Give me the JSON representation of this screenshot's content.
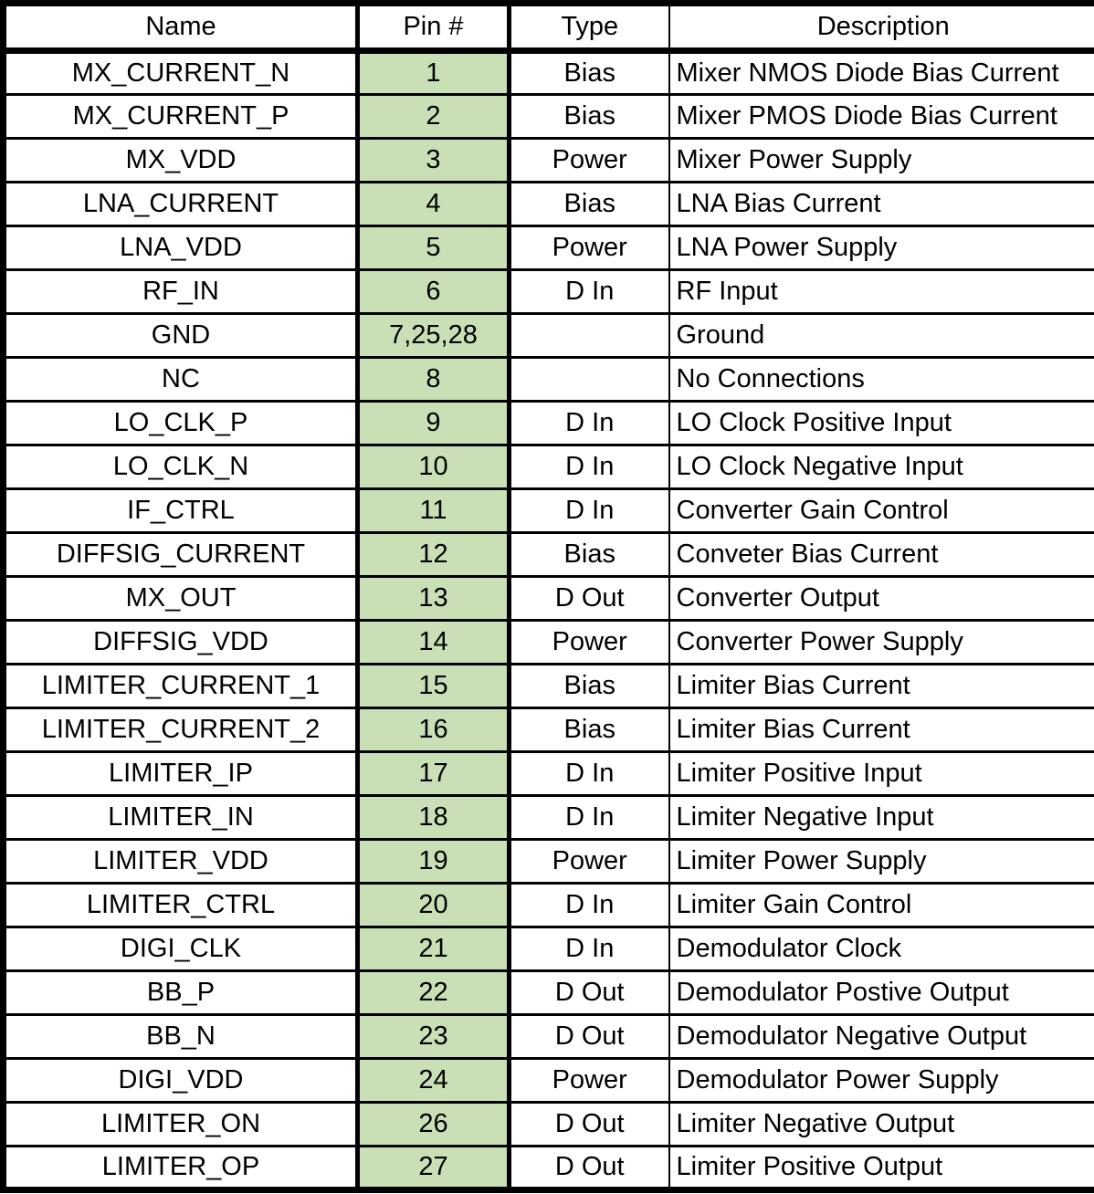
{
  "table": {
    "columns": [
      "Name",
      "Pin #",
      "Type",
      "Description"
    ],
    "colors": {
      "pin_column_bg": "#c9e0b6",
      "border": "#000000",
      "background": "#ffffff",
      "text": "#000000"
    },
    "rows": [
      {
        "name": "MX_CURRENT_N",
        "pin": "1",
        "type": "Bias",
        "description": "Mixer NMOS Diode Bias Current"
      },
      {
        "name": "MX_CURRENT_P",
        "pin": "2",
        "type": "Bias",
        "description": "Mixer PMOS Diode Bias Current"
      },
      {
        "name": "MX_VDD",
        "pin": "3",
        "type": "Power",
        "description": "Mixer Power Supply"
      },
      {
        "name": "LNA_CURRENT",
        "pin": "4",
        "type": "Bias",
        "description": "LNA Bias Current"
      },
      {
        "name": "LNA_VDD",
        "pin": "5",
        "type": "Power",
        "description": "LNA Power Supply"
      },
      {
        "name": "RF_IN",
        "pin": "6",
        "type": "D In",
        "description": "RF Input"
      },
      {
        "name": "GND",
        "pin": "7,25,28",
        "type": "",
        "description": "Ground"
      },
      {
        "name": "NC",
        "pin": "8",
        "type": "",
        "description": "No Connections"
      },
      {
        "name": "LO_CLK_P",
        "pin": "9",
        "type": "D In",
        "description": "LO Clock Positive Input"
      },
      {
        "name": "LO_CLK_N",
        "pin": "10",
        "type": "D In",
        "description": "LO Clock Negative Input"
      },
      {
        "name": "IF_CTRL",
        "pin": "11",
        "type": "D In",
        "description": "Converter Gain Control"
      },
      {
        "name": "DIFFSIG_CURRENT",
        "pin": "12",
        "type": "Bias",
        "description": "Conveter Bias Current"
      },
      {
        "name": "MX_OUT",
        "pin": "13",
        "type": "D Out",
        "description": "Converter Output"
      },
      {
        "name": "DIFFSIG_VDD",
        "pin": "14",
        "type": "Power",
        "description": "Converter Power Supply"
      },
      {
        "name": "LIMITER_CURRENT_1",
        "pin": "15",
        "type": "Bias",
        "description": "Limiter Bias Current"
      },
      {
        "name": "LIMITER_CURRENT_2",
        "pin": "16",
        "type": "Bias",
        "description": "Limiter Bias Current"
      },
      {
        "name": "LIMITER_IP",
        "pin": "17",
        "type": "D In",
        "description": "Limiter Positive Input"
      },
      {
        "name": "LIMITER_IN",
        "pin": "18",
        "type": "D In",
        "description": "Limiter Negative Input"
      },
      {
        "name": "LIMITER_VDD",
        "pin": "19",
        "type": "Power",
        "description": "Limiter Power Supply"
      },
      {
        "name": "LIMITER_CTRL",
        "pin": "20",
        "type": "D In",
        "description": "Limiter Gain Control"
      },
      {
        "name": "DIGI_CLK",
        "pin": "21",
        "type": "D In",
        "description": "Demodulator Clock"
      },
      {
        "name": "BB_P",
        "pin": "22",
        "type": "D Out",
        "description": "Demodulator Postive Output"
      },
      {
        "name": "BB_N",
        "pin": "23",
        "type": "D Out",
        "description": "Demodulator Negative Output"
      },
      {
        "name": "DIGI_VDD",
        "pin": "24",
        "type": "Power",
        "description": "Demodulator Power Supply"
      },
      {
        "name": "LIMITER_ON",
        "pin": "26",
        "type": "D Out",
        "description": "Limiter Negative Output"
      },
      {
        "name": "LIMITER_OP",
        "pin": "27",
        "type": "D Out",
        "description": "Limiter Positive Output"
      }
    ]
  }
}
